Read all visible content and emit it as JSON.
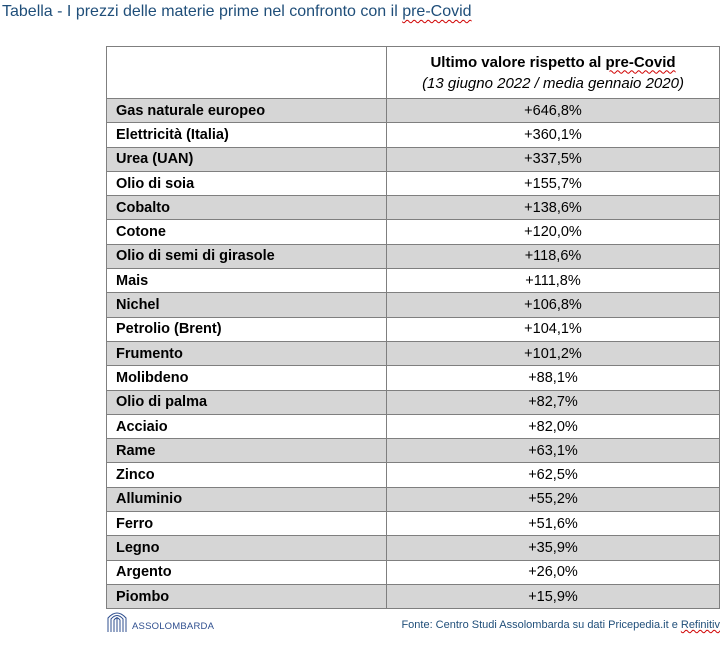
{
  "title_prefix": "Tabella - I prezzi delle materie prime nel confronto con il ",
  "title_suffix": "pre-Covid",
  "header": {
    "line1_prefix": "Ultimo valore rispetto al ",
    "line1_suffix": "pre-Covid",
    "line2": "(13 giugno 2022 / media gennaio 2020)"
  },
  "rows": [
    {
      "name": "Gas naturale europeo",
      "value": "+646,8%"
    },
    {
      "name": "Elettricità (Italia)",
      "value": "+360,1%"
    },
    {
      "name": "Urea (UAN)",
      "value": "+337,5%"
    },
    {
      "name": "Olio di soia",
      "value": "+155,7%"
    },
    {
      "name": "Cobalto",
      "value": "+138,6%"
    },
    {
      "name": "Cotone",
      "value": "+120,0%"
    },
    {
      "name": "Olio di semi di girasole",
      "value": "+118,6%"
    },
    {
      "name": "Mais",
      "value": "+111,8%"
    },
    {
      "name": "Nichel",
      "value": "+106,8%"
    },
    {
      "name": "Petrolio (Brent)",
      "value": "+104,1%"
    },
    {
      "name": "Frumento",
      "value": "+101,2%"
    },
    {
      "name": "Molibdeno",
      "value": "+88,1%"
    },
    {
      "name": "Olio di palma",
      "value": "+82,7%"
    },
    {
      "name": "Acciaio",
      "value": "+82,0%"
    },
    {
      "name": "Rame",
      "value": "+63,1%"
    },
    {
      "name": "Zinco",
      "value": "+62,5%"
    },
    {
      "name": "Alluminio",
      "value": "+55,2%"
    },
    {
      "name": "Ferro",
      "value": "+51,6%"
    },
    {
      "name": "Legno",
      "value": "+35,9%"
    },
    {
      "name": "Argento",
      "value": "+26,0%"
    },
    {
      "name": "Piombo",
      "value": "+15,9%"
    }
  ],
  "logo_text": "ASSOLOMBARDA",
  "source_prefix": "Fonte: Centro Studi Assolombarda su dati Pricepedia.it e ",
  "source_suffix": "Refinitiv",
  "colors": {
    "title": "#1f4e79",
    "shade": "#d6d6d6",
    "border": "#7f7f7f"
  }
}
